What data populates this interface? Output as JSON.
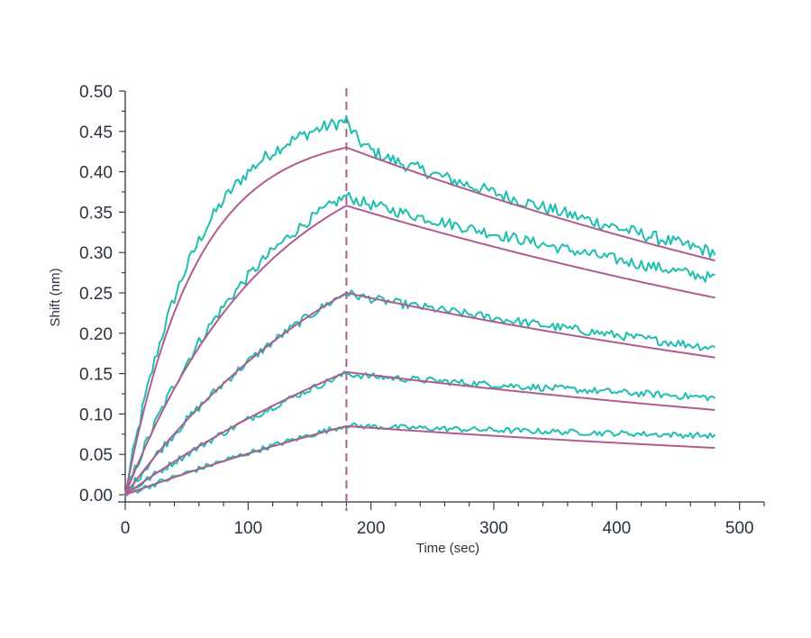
{
  "chart_data": {
    "type": "line",
    "title": "",
    "xlabel": "Time (sec)",
    "ylabel": "Shift (nm)",
    "xlim": [
      0,
      520
    ],
    "ylim": [
      0,
      0.5
    ],
    "x_ticks": [
      0,
      100,
      200,
      300,
      400,
      500
    ],
    "y_ticks": [
      0.0,
      0.05,
      0.1,
      0.15,
      0.2,
      0.25,
      0.3,
      0.35,
      0.4,
      0.45,
      0.5
    ],
    "y_tick_labels": [
      "0.00",
      "0.05",
      "0.10",
      "0.15",
      "0.20",
      "0.25",
      "0.30",
      "0.35",
      "0.40",
      "0.45",
      "0.50"
    ],
    "x_tick_labels": [
      "0",
      "100",
      "200",
      "300",
      "400",
      "500"
    ],
    "grid": false,
    "legend": "none",
    "association_end_time": 180,
    "end_time": 480,
    "colors": {
      "raw": "#1ebfb0",
      "fit": "#b05c8f",
      "marker": "#b05c8f",
      "axis": "#2b3340"
    },
    "series": [
      {
        "raw_peak": 0.463,
        "raw_end": 0.3,
        "fit_peak": 0.43,
        "fit_end": 0.29,
        "k": 0.0175
      },
      {
        "raw_peak": 0.37,
        "raw_end": 0.268,
        "fit_peak": 0.358,
        "fit_end": 0.244,
        "k": 0.0085
      },
      {
        "raw_peak": 0.25,
        "raw_end": 0.182,
        "fit_peak": 0.25,
        "fit_end": 0.17,
        "k": 0.0048
      },
      {
        "raw_peak": 0.15,
        "raw_end": 0.12,
        "fit_peak": 0.152,
        "fit_end": 0.105,
        "k": 0.003
      },
      {
        "raw_peak": 0.086,
        "raw_end": 0.073,
        "fit_peak": 0.085,
        "fit_end": 0.058,
        "k": 0.002
      }
    ]
  }
}
